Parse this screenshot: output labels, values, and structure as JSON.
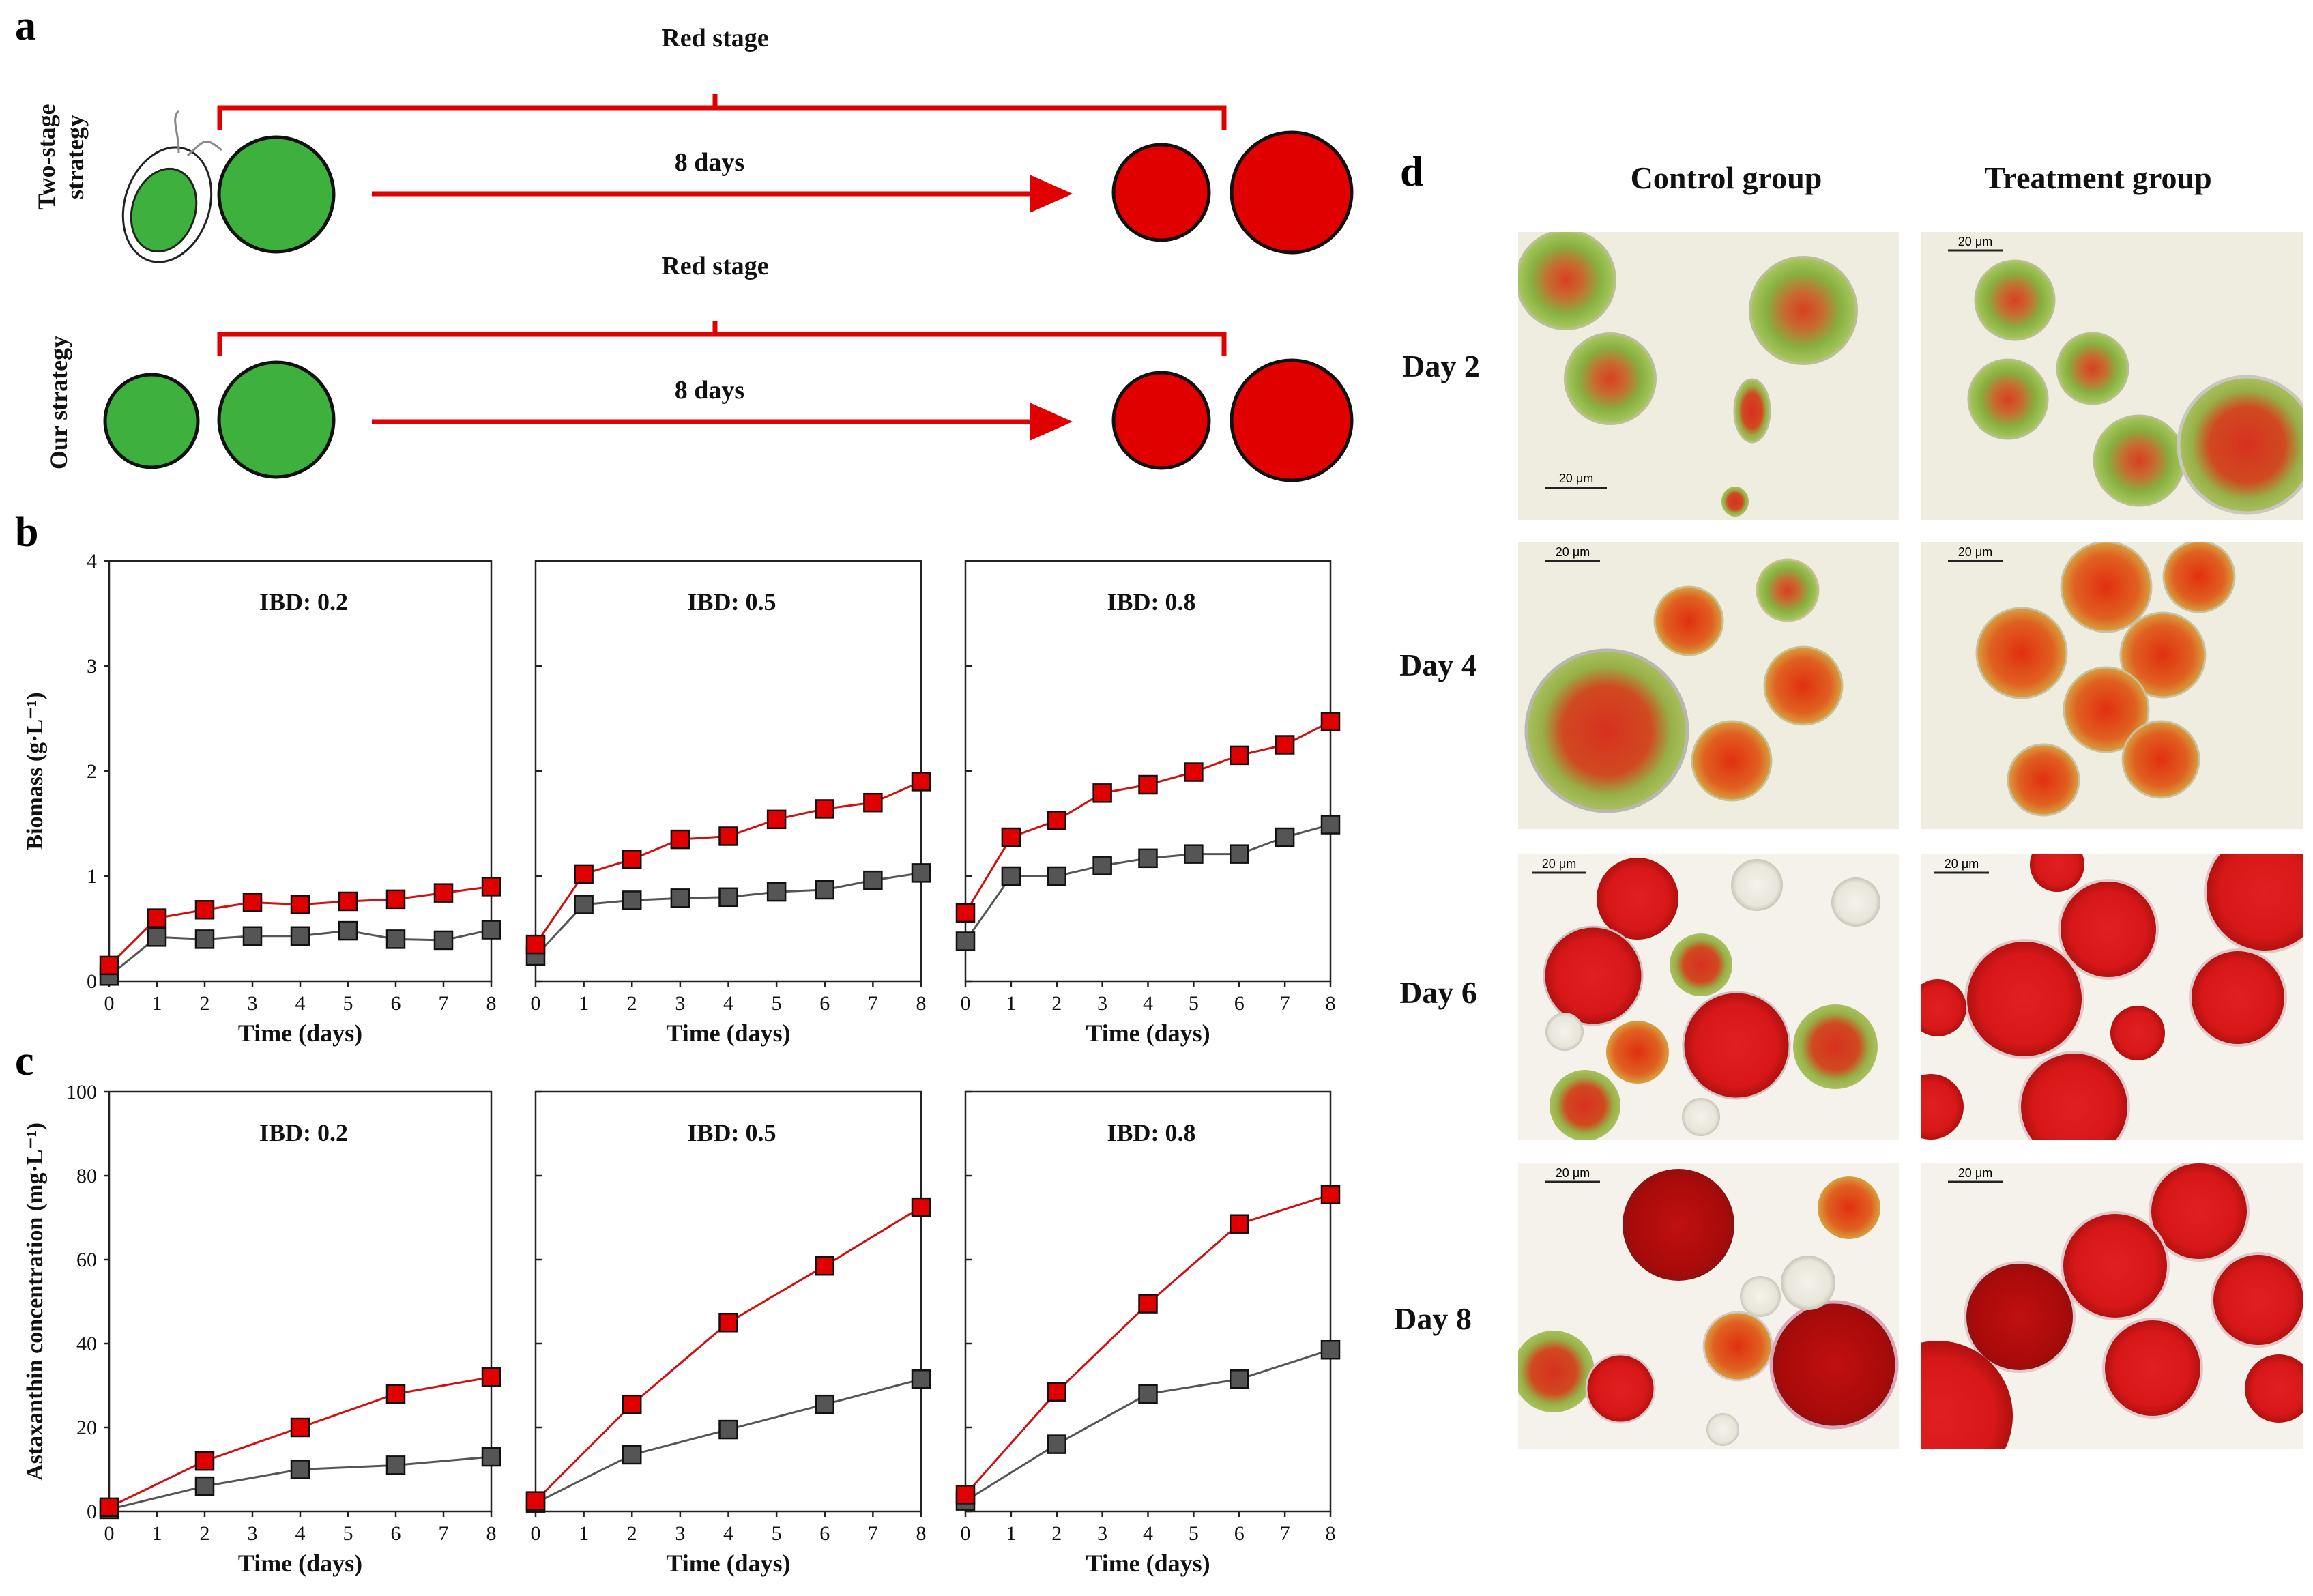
{
  "figure": {
    "panels": {
      "a": "a",
      "b": "b",
      "c": "c",
      "d": "d"
    },
    "colors": {
      "red": "#e00000",
      "green": "#3db03d",
      "gray": "#555555",
      "line_red": "#d01010",
      "line_gray": "#444444"
    }
  },
  "panel_a": {
    "strategies": [
      {
        "label_line1": "Two-stage",
        "label_line2": "strategy",
        "bracket_label": "Red stage",
        "arrow_label": "8 days"
      },
      {
        "label_line1": "Our strategy",
        "label_line2": "",
        "bracket_label": "Red stage",
        "arrow_label": "8 days"
      }
    ]
  },
  "panel_d": {
    "column_headers": [
      "Control group",
      "Treatment group"
    ],
    "row_labels": [
      "Day 2",
      "Day 4",
      "Day 6",
      "Day 8"
    ],
    "scale_bar_label": "20 μm"
  },
  "chart_data": [
    {
      "type": "line",
      "panel": "b",
      "title": "IBD: 0.2",
      "xlabel": "Time (days)",
      "ylabel": "Biomass (g·L⁻¹)",
      "xlim": [
        0,
        8
      ],
      "ylim": [
        0,
        4
      ],
      "yticks": [
        0,
        1,
        2,
        3,
        4
      ],
      "xticks": [
        0,
        1,
        2,
        3,
        4,
        5,
        6,
        7,
        8
      ],
      "series": [
        {
          "name": "Treatment",
          "color": "#d01010",
          "x": [
            0,
            1,
            2,
            3,
            4,
            5,
            6,
            7,
            8
          ],
          "values": [
            0.15,
            0.6,
            0.68,
            0.75,
            0.73,
            0.76,
            0.78,
            0.84,
            0.9
          ]
        },
        {
          "name": "Control",
          "color": "#555555",
          "x": [
            0,
            1,
            2,
            3,
            4,
            5,
            6,
            7,
            8
          ],
          "values": [
            0.05,
            0.42,
            0.4,
            0.43,
            0.43,
            0.48,
            0.4,
            0.39,
            0.49
          ]
        }
      ]
    },
    {
      "type": "line",
      "panel": "b",
      "title": "IBD: 0.5",
      "xlabel": "Time (days)",
      "ylabel": "",
      "xlim": [
        0,
        8
      ],
      "ylim": [
        0,
        4
      ],
      "yticks": [],
      "xticks": [
        0,
        1,
        2,
        3,
        4,
        5,
        6,
        7,
        8
      ],
      "series": [
        {
          "name": "Treatment",
          "color": "#d01010",
          "x": [
            0,
            1,
            2,
            3,
            4,
            5,
            6,
            7,
            8
          ],
          "values": [
            0.35,
            1.02,
            1.16,
            1.35,
            1.38,
            1.54,
            1.64,
            1.7,
            1.9
          ]
        },
        {
          "name": "Control",
          "color": "#555555",
          "x": [
            0,
            1,
            2,
            3,
            4,
            5,
            6,
            7,
            8
          ],
          "values": [
            0.24,
            0.73,
            0.77,
            0.79,
            0.8,
            0.85,
            0.87,
            0.96,
            1.03
          ]
        }
      ]
    },
    {
      "type": "line",
      "panel": "b",
      "title": "IBD: 0.8",
      "xlabel": "Time (days)",
      "ylabel": "",
      "xlim": [
        0,
        8
      ],
      "ylim": [
        0,
        4
      ],
      "yticks": [],
      "xticks": [
        0,
        1,
        2,
        3,
        4,
        5,
        6,
        7,
        8
      ],
      "series": [
        {
          "name": "Treatment",
          "color": "#d01010",
          "x": [
            0,
            1,
            2,
            3,
            4,
            5,
            6,
            7,
            8
          ],
          "values": [
            0.65,
            1.37,
            1.53,
            1.79,
            1.87,
            1.99,
            2.15,
            2.25,
            2.47
          ]
        },
        {
          "name": "Control",
          "color": "#555555",
          "x": [
            0,
            1,
            2,
            3,
            4,
            5,
            6,
            7,
            8
          ],
          "values": [
            0.38,
            1.0,
            1.0,
            1.1,
            1.17,
            1.21,
            1.21,
            1.37,
            1.49
          ]
        }
      ]
    },
    {
      "type": "line",
      "panel": "c",
      "title": "IBD: 0.2",
      "xlabel": "Time (days)",
      "ylabel": "Astaxanthin concentration (mg·L⁻¹)",
      "xlim": [
        0,
        8
      ],
      "ylim": [
        0,
        100
      ],
      "yticks": [
        0,
        20,
        40,
        60,
        80,
        100
      ],
      "xticks": [
        0,
        1,
        2,
        3,
        4,
        5,
        6,
        7,
        8
      ],
      "series": [
        {
          "name": "Treatment",
          "color": "#d01010",
          "x": [
            0,
            2,
            4,
            6,
            8
          ],
          "values": [
            1,
            12,
            20,
            28,
            32
          ]
        },
        {
          "name": "Control",
          "color": "#555555",
          "x": [
            0,
            2,
            4,
            6,
            8
          ],
          "values": [
            0.5,
            6,
            10,
            11,
            13
          ]
        }
      ]
    },
    {
      "type": "line",
      "panel": "c",
      "title": "IBD: 0.5",
      "xlabel": "Time (days)",
      "ylabel": "",
      "xlim": [
        0,
        8
      ],
      "ylim": [
        0,
        100
      ],
      "yticks": [],
      "xticks": [
        0,
        1,
        2,
        3,
        4,
        5,
        6,
        7,
        8
      ],
      "series": [
        {
          "name": "Treatment",
          "color": "#d01010",
          "x": [
            0,
            2,
            4,
            6,
            8
          ],
          "values": [
            2.5,
            25.5,
            45,
            58.5,
            72.5
          ]
        },
        {
          "name": "Control",
          "color": "#555555",
          "x": [
            0,
            2,
            4,
            6,
            8
          ],
          "values": [
            2,
            13.5,
            19.5,
            25.5,
            31.5
          ]
        }
      ]
    },
    {
      "type": "line",
      "panel": "c",
      "title": "IBD: 0.8",
      "xlabel": "Time (days)",
      "ylabel": "",
      "xlim": [
        0,
        8
      ],
      "ylim": [
        0,
        100
      ],
      "yticks": [],
      "xticks": [
        0,
        1,
        2,
        3,
        4,
        5,
        6,
        7,
        8
      ],
      "series": [
        {
          "name": "Treatment",
          "color": "#d01010",
          "x": [
            0,
            2,
            4,
            6,
            8
          ],
          "values": [
            4,
            28.5,
            49.5,
            68.5,
            75.5
          ]
        },
        {
          "name": "Control",
          "color": "#555555",
          "x": [
            0,
            2,
            4,
            6,
            8
          ],
          "values": [
            2.5,
            16,
            28,
            31.5,
            38.5
          ]
        }
      ]
    }
  ]
}
